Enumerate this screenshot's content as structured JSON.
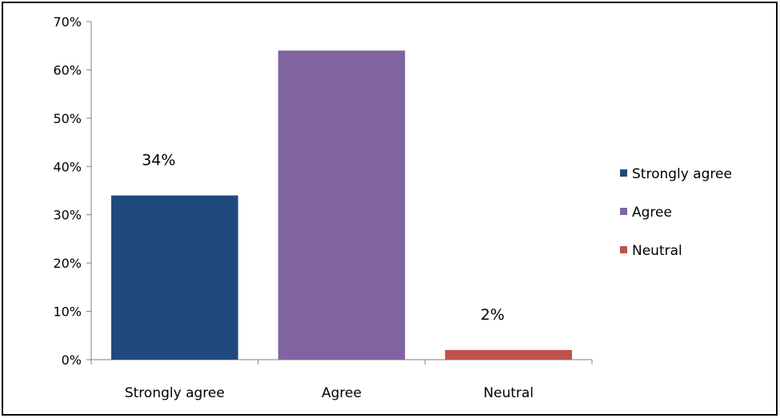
{
  "chart_data": {
    "type": "bar",
    "categories": [
      "Strongly agree",
      "Agree",
      "Neutral"
    ],
    "values": [
      0.34,
      0.64,
      0.02
    ],
    "data_labels": [
      "34%",
      "",
      "2%"
    ],
    "colors": [
      "#1F497D",
      "#8064A2",
      "#C0504D"
    ],
    "ylim": [
      0,
      0.7
    ],
    "yticks": [
      0,
      0.1,
      0.2,
      0.3,
      0.4,
      0.5,
      0.6,
      0.7
    ],
    "ytick_labels": [
      "0%",
      "10%",
      "20%",
      "30%",
      "40%",
      "50%",
      "60%",
      "70%"
    ],
    "title": "",
    "xlabel": "",
    "ylabel": "",
    "grid": false,
    "legend": {
      "position": "right",
      "entries": [
        "Strongly agree",
        "Agree",
        "Neutral"
      ]
    }
  }
}
